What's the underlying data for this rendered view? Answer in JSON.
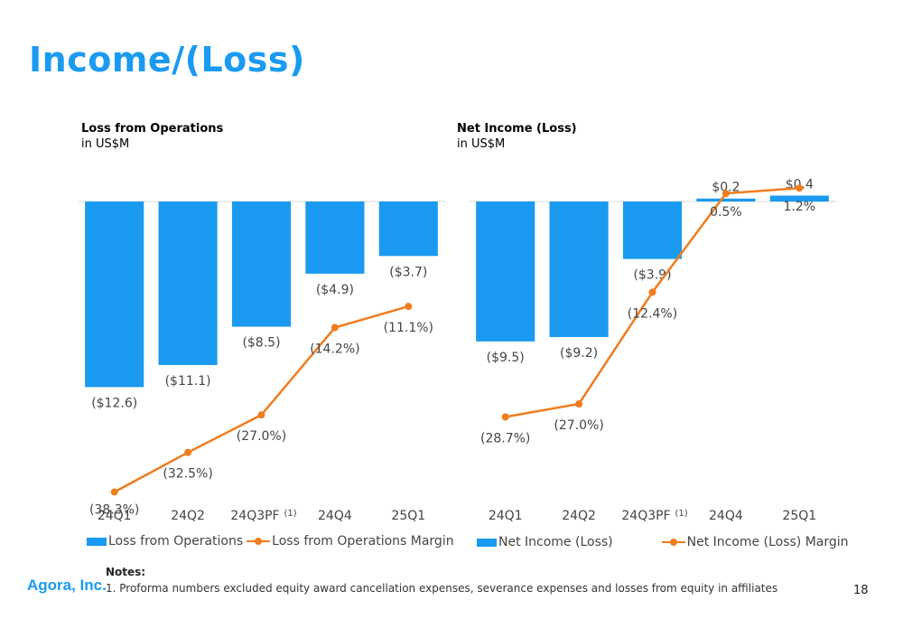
{
  "page": {
    "title": "Income/(Loss)",
    "company": "Agora, Inc.",
    "notes_heading": "Notes:",
    "notes_text": "1. Proforma numbers excluded equity award cancellation expenses, severance expenses and losses from equity in affiliates",
    "page_number": "18"
  },
  "charts": [
    {
      "heading": "Loss from Operations",
      "unit": "in US$M"
    },
    {
      "heading": "Net Income (Loss)",
      "unit": "in US$M"
    }
  ],
  "chart_data": [
    {
      "type": "bar",
      "title": "Loss from Operations",
      "subtitle": "in US$M",
      "categories": [
        "24Q1",
        "24Q2",
        "24Q3PF",
        "24Q4",
        "25Q1"
      ],
      "category_superscripts": [
        "",
        "",
        "(1)",
        "",
        ""
      ],
      "series": [
        {
          "name": "Loss from Operations",
          "kind": "bar",
          "values": [
            -12.6,
            -11.1,
            -8.5,
            -4.9,
            -3.7
          ],
          "labels": [
            "($12.6)",
            "($11.1)",
            "($8.5)",
            "($4.9)",
            "($3.7)"
          ],
          "color": "#1a9af0"
        },
        {
          "name": "Loss from Operations Margin",
          "kind": "line",
          "values": [
            -38.3,
            -32.5,
            -27.0,
            -14.2,
            -11.1
          ],
          "labels": [
            "(38.3%)",
            "(32.5%)",
            "(27.0%)",
            "(14.2%)",
            "(11.1%)"
          ],
          "color": "#f07c1e"
        }
      ],
      "legend": "bottom",
      "grid": false
    },
    {
      "type": "bar",
      "title": "Net Income (Loss)",
      "subtitle": "in US$M",
      "categories": [
        "24Q1",
        "24Q2",
        "24Q3PF",
        "24Q4",
        "25Q1"
      ],
      "category_superscripts": [
        "",
        "",
        "(1)",
        "",
        ""
      ],
      "series": [
        {
          "name": "Net Income (Loss)",
          "kind": "bar",
          "values": [
            -9.5,
            -9.2,
            -3.9,
            0.2,
            0.4
          ],
          "labels": [
            "($9.5)",
            "($9.2)",
            "($3.9)",
            "$0.2",
            "$0.4"
          ],
          "color": "#1a9af0"
        },
        {
          "name": "Net Income (Loss) Margin",
          "kind": "line",
          "values": [
            -28.7,
            -27.0,
            -12.4,
            0.5,
            1.2
          ],
          "labels": [
            "(28.7%)",
            "(27.0%)",
            "(12.4%)",
            "0.5%",
            "1.2%"
          ],
          "color": "#f07c1e"
        }
      ],
      "legend": "bottom",
      "grid": false
    }
  ]
}
